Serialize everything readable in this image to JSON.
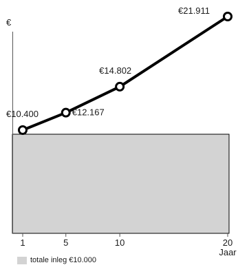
{
  "chart_data": {
    "type": "line",
    "ylabel": "€",
    "xlabel": "Jaar",
    "x_ticks": [
      "1",
      "5",
      "10",
      "20"
    ],
    "xlim": [
      0,
      20
    ],
    "ylim": [
      0,
      22500
    ],
    "series": [
      {
        "x": [
          1,
          5,
          10,
          20
        ],
        "values": [
          10400,
          12167,
          14802,
          21911
        ],
        "labels": [
          "€10.400",
          "€12.167",
          "€14.802",
          "€21.911"
        ]
      }
    ],
    "baseline": {
      "value": 10000,
      "legend_label": "totale inleg €10.000"
    },
    "grid": false,
    "colors": {
      "line": "#000000",
      "marker_fill": "#ffffff",
      "area_fill": "#d3d3d3",
      "area_stroke": "#000000",
      "axis": "#555555"
    }
  }
}
